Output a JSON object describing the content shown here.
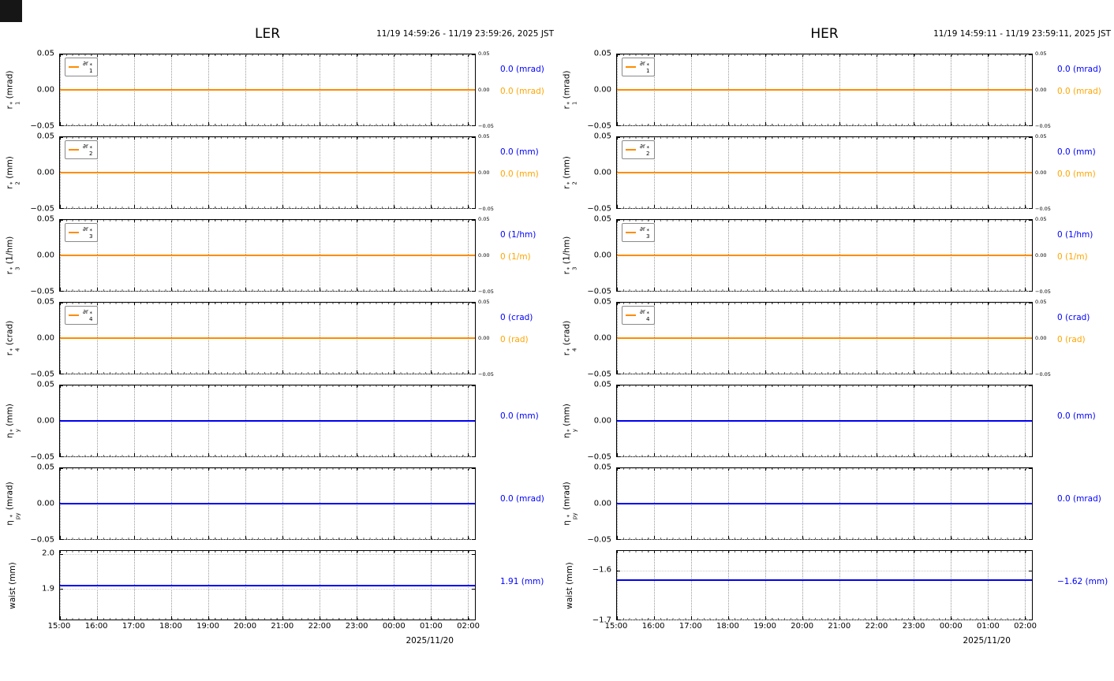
{
  "corner_mark": {
    "color": "#161616"
  },
  "colors": {
    "orange_line": "#ff8c00",
    "blue_line": "#0000f0",
    "blue_text": "#0000ff",
    "orange_text": "#ffa500",
    "grid": "#9a9a9a"
  },
  "x_axis": {
    "ticks": [
      "15:00",
      "16:00",
      "17:00",
      "18:00",
      "19:00",
      "20:00",
      "21:00",
      "22:00",
      "23:00",
      "00:00",
      "01:00",
      "02:00"
    ],
    "span_hours": 11.2
  },
  "panels": [
    {
      "title": "LER",
      "timestamp": "11/19 14:59:26 - 11/19 23:59:26, 2025 JST",
      "date_label": "2025/11/20"
    },
    {
      "title": "HER",
      "timestamp": "11/19 14:59:11 - 11/19 23:59:11, 2025 JST",
      "date_label": "2025/11/20"
    }
  ],
  "chart_data": [
    {
      "panel": "LER",
      "type": "line",
      "x_ticks": [
        "15:00",
        "16:00",
        "17:00",
        "18:00",
        "19:00",
        "20:00",
        "21:00",
        "22:00",
        "23:00",
        "00:00",
        "01:00",
        "02:00"
      ],
      "x_label": "2025/11/20",
      "subplots": [
        {
          "key": "r1",
          "ylabel": {
            "base": "r",
            "sub": "1",
            "sup": "*",
            "unit": "(mrad)"
          },
          "legend": {
            "base": "∂r",
            "sub": "1",
            "sup": "*"
          },
          "line_color": "#ff8c00",
          "value": 0.0,
          "ylim": [
            -0.05,
            0.05
          ],
          "yticks": [
            {
              "v": 0.05,
              "label": "0.05"
            },
            {
              "v": 0.0,
              "label": "0.00"
            },
            {
              "v": -0.05,
              "label": "−0.05"
            }
          ],
          "right_ticks": true,
          "annotations": [
            {
              "text": "0.0 (mrad)",
              "color": "#0000ff"
            },
            {
              "text": "0.0 (mrad)",
              "color": "#ffa500"
            }
          ]
        },
        {
          "key": "r2",
          "ylabel": {
            "base": "r",
            "sub": "2",
            "sup": "*",
            "unit": "(mm)"
          },
          "legend": {
            "base": "∂r",
            "sub": "2",
            "sup": "*"
          },
          "line_color": "#ff8c00",
          "value": 0.0,
          "ylim": [
            -0.05,
            0.05
          ],
          "yticks": [
            {
              "v": 0.05,
              "label": "0.05"
            },
            {
              "v": 0.0,
              "label": "0.00"
            },
            {
              "v": -0.05,
              "label": "−0.05"
            }
          ],
          "right_ticks": true,
          "annotations": [
            {
              "text": "0.0 (mm)",
              "color": "#0000ff"
            },
            {
              "text": "0.0 (mm)",
              "color": "#ffa500"
            }
          ]
        },
        {
          "key": "r3",
          "ylabel": {
            "base": "r",
            "sub": "3",
            "sup": "*",
            "unit": "(1/hm)"
          },
          "legend": {
            "base": "∂r",
            "sub": "3",
            "sup": "*"
          },
          "line_color": "#ff8c00",
          "value": 0.0,
          "ylim": [
            -0.05,
            0.05
          ],
          "yticks": [
            {
              "v": 0.05,
              "label": "0.05"
            },
            {
              "v": 0.0,
              "label": "0.00"
            },
            {
              "v": -0.05,
              "label": "−0.05"
            }
          ],
          "right_ticks": true,
          "annotations": [
            {
              "text": "0 (1/hm)",
              "color": "#0000ff"
            },
            {
              "text": "0 (1/m)",
              "color": "#ffa500"
            }
          ]
        },
        {
          "key": "r4",
          "ylabel": {
            "base": "r",
            "sub": "4",
            "sup": "*",
            "unit": "(crad)"
          },
          "legend": {
            "base": "∂r",
            "sub": "4",
            "sup": "*"
          },
          "line_color": "#ff8c00",
          "value": 0.0,
          "ylim": [
            -0.05,
            0.05
          ],
          "yticks": [
            {
              "v": 0.05,
              "label": "0.05"
            },
            {
              "v": 0.0,
              "label": "0.00"
            },
            {
              "v": -0.05,
              "label": "−0.05"
            }
          ],
          "right_ticks": true,
          "annotations": [
            {
              "text": "0 (crad)",
              "color": "#0000ff"
            },
            {
              "text": "0 (rad)",
              "color": "#ffa500"
            }
          ]
        },
        {
          "key": "etay",
          "ylabel": {
            "base": "η",
            "sub": "y",
            "sup": "*",
            "unit": "(mm)"
          },
          "legend": null,
          "line_color": "#0000f0",
          "value": 0.0,
          "ylim": [
            -0.05,
            0.05
          ],
          "yticks": [
            {
              "v": 0.05,
              "label": "0.05"
            },
            {
              "v": 0.0,
              "label": "0.00"
            },
            {
              "v": -0.05,
              "label": "−0.05"
            }
          ],
          "right_ticks": false,
          "annotations": [
            {
              "text": "0.0 (mm)",
              "color": "#0000ff"
            }
          ]
        },
        {
          "key": "etapy",
          "ylabel": {
            "base": "η",
            "sub": "py",
            "sup": "*",
            "unit": "(mrad)"
          },
          "legend": null,
          "line_color": "#0000f0",
          "value": 0.0,
          "ylim": [
            -0.05,
            0.05
          ],
          "yticks": [
            {
              "v": 0.05,
              "label": "0.05"
            },
            {
              "v": 0.0,
              "label": "0.00"
            },
            {
              "v": -0.05,
              "label": "−0.05"
            }
          ],
          "right_ticks": false,
          "annotations": [
            {
              "text": "0.0 (mrad)",
              "color": "#0000ff"
            }
          ]
        },
        {
          "key": "waist",
          "ylabel": {
            "base": "waist",
            "unit": "(mm)"
          },
          "legend": null,
          "line_color": "#0000f0",
          "value": 1.91,
          "ylim": [
            1.81,
            2.01
          ],
          "yticks": [
            {
              "v": 2.0,
              "label": "2.0"
            },
            {
              "v": 1.9,
              "label": "1.9"
            }
          ],
          "right_ticks": false,
          "annotations": [
            {
              "text": "1.91 (mm)",
              "color": "#0000ff"
            }
          ]
        }
      ]
    },
    {
      "panel": "HER",
      "type": "line",
      "x_ticks": [
        "15:00",
        "16:00",
        "17:00",
        "18:00",
        "19:00",
        "20:00",
        "21:00",
        "22:00",
        "23:00",
        "00:00",
        "01:00",
        "02:00"
      ],
      "x_label": "2025/11/20",
      "subplots": [
        {
          "key": "r1",
          "ylabel": {
            "base": "r",
            "sub": "1",
            "sup": "*",
            "unit": "(mrad)"
          },
          "legend": {
            "base": "∂r",
            "sub": "1",
            "sup": "*"
          },
          "line_color": "#ff8c00",
          "value": 0.0,
          "ylim": [
            -0.05,
            0.05
          ],
          "yticks": [
            {
              "v": 0.05,
              "label": "0.05"
            },
            {
              "v": 0.0,
              "label": "0.00"
            },
            {
              "v": -0.05,
              "label": "−0.05"
            }
          ],
          "right_ticks": true,
          "annotations": [
            {
              "text": "0.0 (mrad)",
              "color": "#0000ff"
            },
            {
              "text": "0.0 (mrad)",
              "color": "#ffa500"
            }
          ]
        },
        {
          "key": "r2",
          "ylabel": {
            "base": "r",
            "sub": "2",
            "sup": "*",
            "unit": "(mm)"
          },
          "legend": {
            "base": "∂r",
            "sub": "2",
            "sup": "*"
          },
          "line_color": "#ff8c00",
          "value": 0.0,
          "ylim": [
            -0.05,
            0.05
          ],
          "yticks": [
            {
              "v": 0.05,
              "label": "0.05"
            },
            {
              "v": 0.0,
              "label": "0.00"
            },
            {
              "v": -0.05,
              "label": "−0.05"
            }
          ],
          "right_ticks": true,
          "annotations": [
            {
              "text": "0.0 (mm)",
              "color": "#0000ff"
            },
            {
              "text": "0.0 (mm)",
              "color": "#ffa500"
            }
          ]
        },
        {
          "key": "r3",
          "ylabel": {
            "base": "r",
            "sub": "3",
            "sup": "*",
            "unit": "(1/hm)"
          },
          "legend": {
            "base": "∂r",
            "sub": "3",
            "sup": "*"
          },
          "line_color": "#ff8c00",
          "value": 0.0,
          "ylim": [
            -0.05,
            0.05
          ],
          "yticks": [
            {
              "v": 0.05,
              "label": "0.05"
            },
            {
              "v": 0.0,
              "label": "0.00"
            },
            {
              "v": -0.05,
              "label": "−0.05"
            }
          ],
          "right_ticks": true,
          "annotations": [
            {
              "text": "0 (1/hm)",
              "color": "#0000ff"
            },
            {
              "text": "0 (1/m)",
              "color": "#ffa500"
            }
          ]
        },
        {
          "key": "r4",
          "ylabel": {
            "base": "r",
            "sub": "4",
            "sup": "*",
            "unit": "(crad)"
          },
          "legend": {
            "base": "∂r",
            "sub": "4",
            "sup": "*"
          },
          "line_color": "#ff8c00",
          "value": 0.0,
          "ylim": [
            -0.05,
            0.05
          ],
          "yticks": [
            {
              "v": 0.05,
              "label": "0.05"
            },
            {
              "v": 0.0,
              "label": "0.00"
            },
            {
              "v": -0.05,
              "label": "−0.05"
            }
          ],
          "right_ticks": true,
          "annotations": [
            {
              "text": "0 (crad)",
              "color": "#0000ff"
            },
            {
              "text": "0 (rad)",
              "color": "#ffa500"
            }
          ]
        },
        {
          "key": "etay",
          "ylabel": {
            "base": "η",
            "sub": "y",
            "sup": "*",
            "unit": "(mm)"
          },
          "legend": null,
          "line_color": "#0000f0",
          "value": 0.0,
          "ylim": [
            -0.05,
            0.05
          ],
          "yticks": [
            {
              "v": 0.05,
              "label": "0.05"
            },
            {
              "v": 0.0,
              "label": "0.00"
            },
            {
              "v": -0.05,
              "label": "−0.05"
            }
          ],
          "right_ticks": false,
          "annotations": [
            {
              "text": "0.0 (mm)",
              "color": "#0000ff"
            }
          ]
        },
        {
          "key": "etapy",
          "ylabel": {
            "base": "η",
            "sub": "py",
            "sup": "*",
            "unit": "(mrad)"
          },
          "legend": null,
          "line_color": "#0000f0",
          "value": 0.0,
          "ylim": [
            -0.05,
            0.05
          ],
          "yticks": [
            {
              "v": 0.05,
              "label": "0.05"
            },
            {
              "v": 0.0,
              "label": "0.00"
            },
            {
              "v": -0.05,
              "label": "−0.05"
            }
          ],
          "right_ticks": false,
          "annotations": [
            {
              "text": "0.0 (mrad)",
              "color": "#0000ff"
            }
          ]
        },
        {
          "key": "waist",
          "ylabel": {
            "base": "waist",
            "unit": "(mm)"
          },
          "legend": null,
          "line_color": "#0000f0",
          "value": -1.62,
          "ylim": [
            -1.7,
            -1.56
          ],
          "yticks": [
            {
              "v": -1.6,
              "label": "−1.6"
            },
            {
              "v": -1.7,
              "label": "−1.7"
            }
          ],
          "right_ticks": false,
          "annotations": [
            {
              "text": "−1.62 (mm)",
              "color": "#0000ff"
            }
          ]
        }
      ]
    }
  ]
}
